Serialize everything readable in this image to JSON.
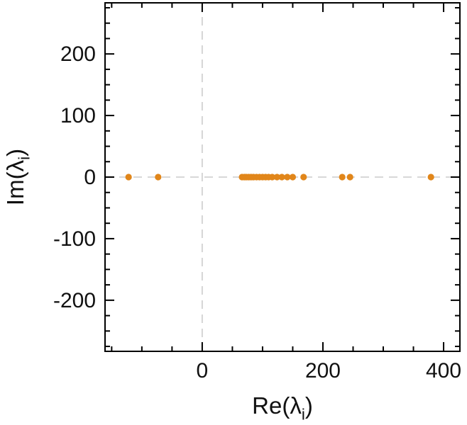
{
  "chart_data": {
    "type": "scatter",
    "title": "",
    "xlabel": {
      "main": "Re(λ",
      "sub": "i",
      "post": ")"
    },
    "ylabel": {
      "main": "Im(λ",
      "sub": "i",
      "post": ")"
    },
    "xlim": [
      -161,
      427
    ],
    "ylim": [
      -283,
      283
    ],
    "xticks": [
      0,
      200,
      400
    ],
    "xtick_labels": [
      "0",
      "200",
      "400"
    ],
    "yticks": [
      -200,
      -100,
      0,
      100,
      200
    ],
    "ytick_labels": [
      "-200",
      "-100",
      "0",
      "100",
      "200"
    ],
    "x_minor_step": 50,
    "y_minor_step": 25,
    "grid": "zero-lines-dashed",
    "legend": "none",
    "point_color": "#e1861a",
    "axis_color": "#000000",
    "zero_line_color": "#cccccc",
    "points": [
      [
        -122,
        0
      ],
      [
        -73,
        0
      ],
      [
        66,
        0
      ],
      [
        70,
        0
      ],
      [
        73,
        0
      ],
      [
        77,
        0
      ],
      [
        81,
        0
      ],
      [
        85,
        0
      ],
      [
        90,
        0
      ],
      [
        95,
        0
      ],
      [
        100,
        0
      ],
      [
        105,
        0
      ],
      [
        110,
        0
      ],
      [
        116,
        0
      ],
      [
        124,
        0
      ],
      [
        132,
        0
      ],
      [
        141,
        0
      ],
      [
        150,
        0
      ],
      [
        168,
        0
      ],
      [
        232,
        0
      ],
      [
        245,
        0
      ],
      [
        379,
        0
      ]
    ]
  }
}
